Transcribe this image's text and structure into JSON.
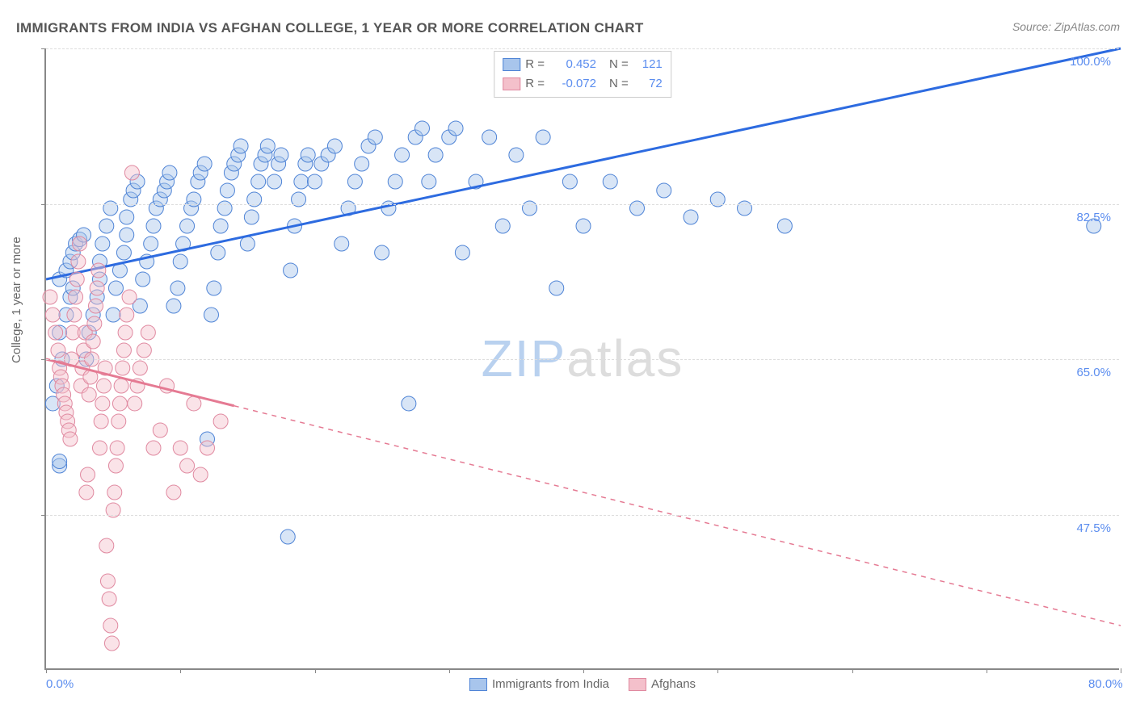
{
  "title": "IMMIGRANTS FROM INDIA VS AFGHAN COLLEGE, 1 YEAR OR MORE CORRELATION CHART",
  "source": "Source: ZipAtlas.com",
  "ylabel": "College, 1 year or more",
  "watermark_zip": "ZIP",
  "watermark_atlas": "atlas",
  "chart": {
    "type": "scatter",
    "xlim": [
      0,
      80
    ],
    "ylim": [
      30,
      100
    ],
    "xtick_positions": [
      0,
      10,
      20,
      30,
      40,
      50,
      60,
      70,
      80
    ],
    "xtick_labels": {
      "0": "0.0%",
      "80": "80.0%"
    },
    "ytick_positions": [
      47.5,
      65.0,
      82.5,
      100.0
    ],
    "ytick_labels": [
      "47.5%",
      "65.0%",
      "82.5%",
      "100.0%"
    ],
    "grid_color": "#dddddd",
    "background_color": "#ffffff",
    "axis_color": "#888888",
    "label_color": "#5b8def",
    "label_fontsize": 15,
    "title_fontsize": 17,
    "title_color": "#555555",
    "marker_radius": 9,
    "marker_opacity": 0.45,
    "line_width_solid": 3,
    "line_width_dash": 1.5,
    "series": [
      {
        "name": "Immigrants from India",
        "color_fill": "#a8c5ec",
        "color_stroke": "#4f84d6",
        "line_color": "#2d6be0",
        "R": "0.452",
        "N": "121",
        "trend": {
          "x1": 0,
          "y1": 74,
          "x2": 80,
          "y2": 100
        },
        "solid_extent_x": 80,
        "points": [
          [
            1,
            53
          ],
          [
            1,
            53.5
          ],
          [
            0.5,
            60
          ],
          [
            0.8,
            62
          ],
          [
            1.2,
            65
          ],
          [
            1,
            68
          ],
          [
            1.5,
            70
          ],
          [
            1.8,
            72
          ],
          [
            2,
            73
          ],
          [
            1,
            74
          ],
          [
            1.5,
            75
          ],
          [
            1.8,
            76
          ],
          [
            2,
            77
          ],
          [
            2.2,
            78
          ],
          [
            2.5,
            78.5
          ],
          [
            2.8,
            79
          ],
          [
            3,
            65
          ],
          [
            3.2,
            68
          ],
          [
            3.5,
            70
          ],
          [
            3.8,
            72
          ],
          [
            4,
            74
          ],
          [
            4,
            76
          ],
          [
            4.2,
            78
          ],
          [
            4.5,
            80
          ],
          [
            4.8,
            82
          ],
          [
            5,
            70
          ],
          [
            5.2,
            73
          ],
          [
            5.5,
            75
          ],
          [
            5.8,
            77
          ],
          [
            6,
            79
          ],
          [
            6,
            81
          ],
          [
            6.3,
            83
          ],
          [
            6.5,
            84
          ],
          [
            6.8,
            85
          ],
          [
            7,
            71
          ],
          [
            7.2,
            74
          ],
          [
            7.5,
            76
          ],
          [
            7.8,
            78
          ],
          [
            8,
            80
          ],
          [
            8.2,
            82
          ],
          [
            8.5,
            83
          ],
          [
            8.8,
            84
          ],
          [
            9,
            85
          ],
          [
            9.2,
            86
          ],
          [
            9.5,
            71
          ],
          [
            9.8,
            73
          ],
          [
            10,
            76
          ],
          [
            10.2,
            78
          ],
          [
            10.5,
            80
          ],
          [
            10.8,
            82
          ],
          [
            11,
            83
          ],
          [
            11.3,
            85
          ],
          [
            11.5,
            86
          ],
          [
            11.8,
            87
          ],
          [
            12,
            56
          ],
          [
            12.3,
            70
          ],
          [
            12.5,
            73
          ],
          [
            12.8,
            77
          ],
          [
            13,
            80
          ],
          [
            13.3,
            82
          ],
          [
            13.5,
            84
          ],
          [
            13.8,
            86
          ],
          [
            14,
            87
          ],
          [
            14.3,
            88
          ],
          [
            14.5,
            89
          ],
          [
            15,
            78
          ],
          [
            15.3,
            81
          ],
          [
            15.5,
            83
          ],
          [
            15.8,
            85
          ],
          [
            16,
            87
          ],
          [
            16.3,
            88
          ],
          [
            16.5,
            89
          ],
          [
            17,
            85
          ],
          [
            17.3,
            87
          ],
          [
            17.5,
            88
          ],
          [
            18,
            45
          ],
          [
            18.2,
            75
          ],
          [
            18.5,
            80
          ],
          [
            18.8,
            83
          ],
          [
            19,
            85
          ],
          [
            19.3,
            87
          ],
          [
            19.5,
            88
          ],
          [
            20,
            85
          ],
          [
            20.5,
            87
          ],
          [
            21,
            88
          ],
          [
            21.5,
            89
          ],
          [
            22,
            78
          ],
          [
            22.5,
            82
          ],
          [
            23,
            85
          ],
          [
            23.5,
            87
          ],
          [
            24,
            89
          ],
          [
            24.5,
            90
          ],
          [
            25,
            77
          ],
          [
            25.5,
            82
          ],
          [
            26,
            85
          ],
          [
            26.5,
            88
          ],
          [
            27,
            60
          ],
          [
            27.5,
            90
          ],
          [
            28,
            91
          ],
          [
            28.5,
            85
          ],
          [
            29,
            88
          ],
          [
            30,
            90
          ],
          [
            30.5,
            91
          ],
          [
            31,
            77
          ],
          [
            32,
            85
          ],
          [
            33,
            90
          ],
          [
            34,
            80
          ],
          [
            35,
            88
          ],
          [
            36,
            82
          ],
          [
            37,
            90
          ],
          [
            38,
            73
          ],
          [
            39,
            85
          ],
          [
            40,
            80
          ],
          [
            42,
            85
          ],
          [
            44,
            82
          ],
          [
            46,
            84
          ],
          [
            48,
            81
          ],
          [
            50,
            83
          ],
          [
            52,
            82
          ],
          [
            55,
            80
          ],
          [
            78,
            80
          ]
        ]
      },
      {
        "name": "Afghans",
        "color_fill": "#f4c0cb",
        "color_stroke": "#e089a0",
        "line_color": "#e57a93",
        "R": "-0.072",
        "N": "72",
        "trend": {
          "x1": 0,
          "y1": 65,
          "x2": 80,
          "y2": 35
        },
        "solid_extent_x": 14,
        "points": [
          [
            0.3,
            72
          ],
          [
            0.5,
            70
          ],
          [
            0.7,
            68
          ],
          [
            0.9,
            66
          ],
          [
            1,
            64
          ],
          [
            1.1,
            63
          ],
          [
            1.2,
            62
          ],
          [
            1.3,
            61
          ],
          [
            1.4,
            60
          ],
          [
            1.5,
            59
          ],
          [
            1.6,
            58
          ],
          [
            1.7,
            57
          ],
          [
            1.8,
            56
          ],
          [
            1.9,
            65
          ],
          [
            2,
            68
          ],
          [
            2.1,
            70
          ],
          [
            2.2,
            72
          ],
          [
            2.3,
            74
          ],
          [
            2.4,
            76
          ],
          [
            2.5,
            78
          ],
          [
            2.6,
            62
          ],
          [
            2.7,
            64
          ],
          [
            2.8,
            66
          ],
          [
            2.9,
            68
          ],
          [
            3,
            50
          ],
          [
            3.1,
            52
          ],
          [
            3.2,
            61
          ],
          [
            3.3,
            63
          ],
          [
            3.4,
            65
          ],
          [
            3.5,
            67
          ],
          [
            3.6,
            69
          ],
          [
            3.7,
            71
          ],
          [
            3.8,
            73
          ],
          [
            3.9,
            75
          ],
          [
            4,
            55
          ],
          [
            4.1,
            58
          ],
          [
            4.2,
            60
          ],
          [
            4.3,
            62
          ],
          [
            4.4,
            64
          ],
          [
            4.5,
            44
          ],
          [
            4.6,
            40
          ],
          [
            4.7,
            38
          ],
          [
            4.8,
            35
          ],
          [
            4.9,
            33
          ],
          [
            5,
            48
          ],
          [
            5.1,
            50
          ],
          [
            5.2,
            53
          ],
          [
            5.3,
            55
          ],
          [
            5.4,
            58
          ],
          [
            5.5,
            60
          ],
          [
            5.6,
            62
          ],
          [
            5.7,
            64
          ],
          [
            5.8,
            66
          ],
          [
            5.9,
            68
          ],
          [
            6,
            70
          ],
          [
            6.2,
            72
          ],
          [
            6.4,
            86
          ],
          [
            6.6,
            60
          ],
          [
            6.8,
            62
          ],
          [
            7,
            64
          ],
          [
            7.3,
            66
          ],
          [
            7.6,
            68
          ],
          [
            8,
            55
          ],
          [
            8.5,
            57
          ],
          [
            9,
            62
          ],
          [
            9.5,
            50
          ],
          [
            10,
            55
          ],
          [
            10.5,
            53
          ],
          [
            11,
            60
          ],
          [
            11.5,
            52
          ],
          [
            12,
            55
          ],
          [
            13,
            58
          ]
        ]
      }
    ],
    "legend_bottom": [
      {
        "label": "Immigrants from India",
        "fill": "#a8c5ec",
        "stroke": "#4f84d6"
      },
      {
        "label": "Afghans",
        "fill": "#f4c0cb",
        "stroke": "#e089a0"
      }
    ],
    "legend_top_labels": {
      "R": "R =",
      "N": "N ="
    }
  }
}
